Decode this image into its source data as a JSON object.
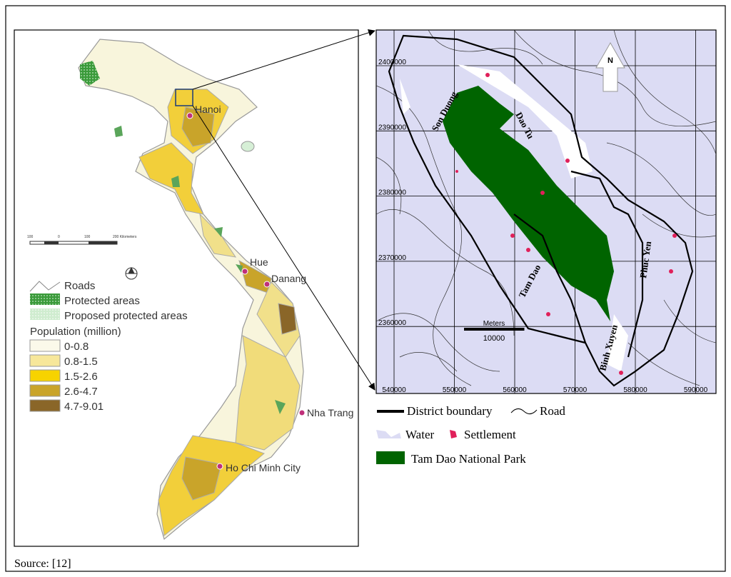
{
  "left_map": {
    "cities": [
      "Hanoi",
      "Hue",
      "Danang",
      "Nha Trang",
      "Ho Chi Minh City"
    ],
    "scale_labels": [
      "100",
      "0",
      "100",
      "200 Kilometers"
    ],
    "legend": [
      "Roads",
      "Protected areas",
      "Proposed protected areas"
    ],
    "population_title": "Population (million)",
    "population_classes": [
      "0-0.8",
      "0.8-1.5",
      "1.5-2.6",
      "2.6-4.7",
      "4.7-9.01"
    ]
  },
  "right_map": {
    "north": "N",
    "xticks": [
      540000,
      550000,
      560000,
      570000,
      580000,
      590000
    ],
    "yticks": [
      2400000,
      2390000,
      2380000,
      2370000,
      2360000
    ],
    "scale_unit": "Meters",
    "scale_length": 10000,
    "districts": [
      "Son Duong",
      "Dao Tu",
      "Tam Dao",
      "Phuc Yen",
      "Binh Xuyen"
    ],
    "legend": [
      "District boundary",
      "Road",
      "Water",
      "Settlement",
      "Tam Dao National Park"
    ]
  },
  "source": "Source: [12]"
}
